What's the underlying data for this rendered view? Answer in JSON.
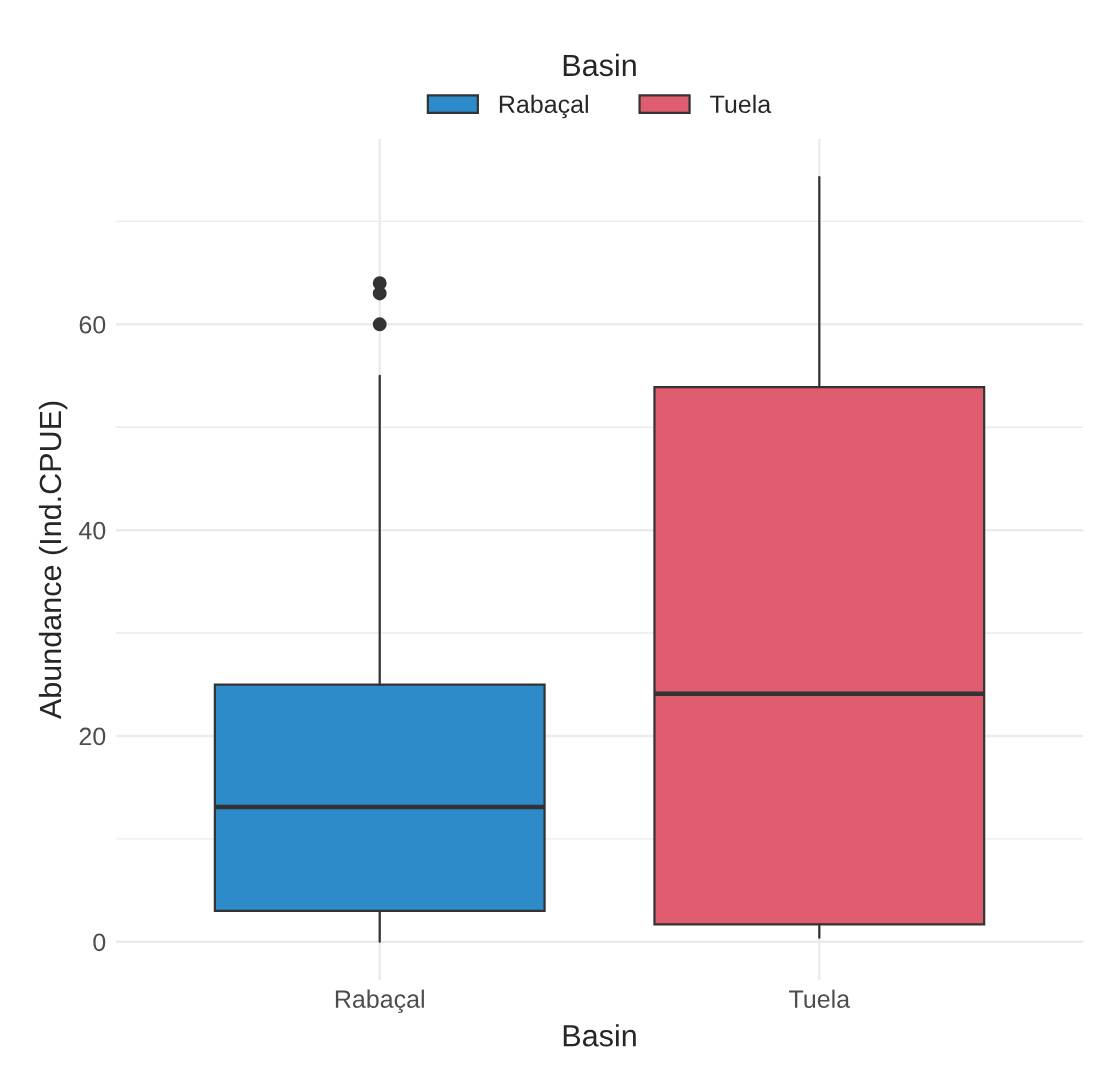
{
  "chart_data": {
    "type": "box",
    "xlabel": "Basin",
    "ylabel": "Abundance (Ind.CPUE)",
    "legend_title": "Basin",
    "legend": "top",
    "categories": [
      "Rabaçal",
      "Tuela"
    ],
    "series": [
      {
        "name": "Rabaçal",
        "color": "#2e8bc9",
        "boxes": [
          {
            "low": 0,
            "q1": 3,
            "median": 13.1,
            "q3": 25,
            "high": 55,
            "outliers": [
              60,
              63,
              64
            ]
          },
          null
        ]
      },
      {
        "name": "Tuela",
        "color": "#e05c6f",
        "boxes": [
          null,
          {
            "low": 0.4,
            "q1": 1.7,
            "median": 24.1,
            "q3": 53.9,
            "high": 74.3
          }
        ]
      }
    ],
    "ylim": [
      -3.7,
      78
    ],
    "yticks": [
      0,
      {
        "value": 10,
        "label": null
      },
      20,
      {
        "value": 30,
        "label": null
      },
      40,
      {
        "value": 50,
        "label": null
      },
      60,
      {
        "value": 70,
        "label": null
      }
    ],
    "grid": true
  }
}
